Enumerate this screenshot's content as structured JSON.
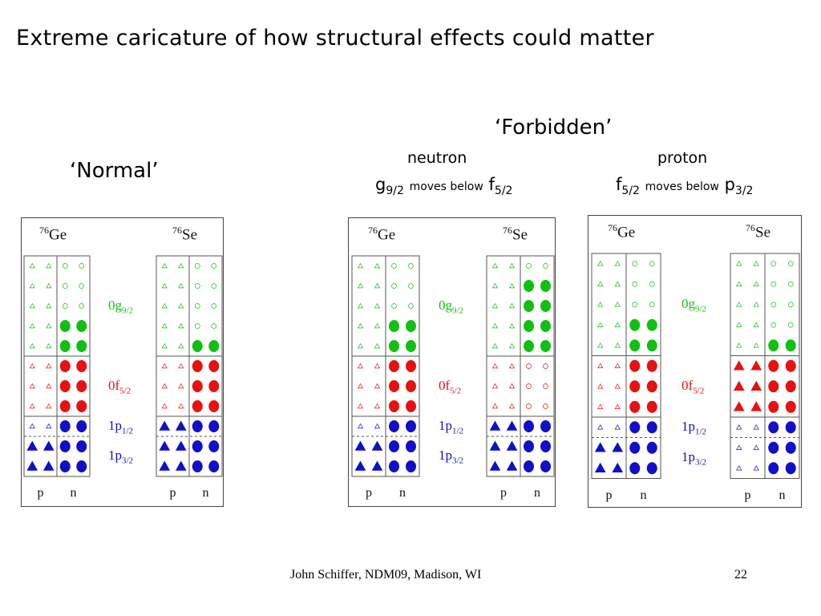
{
  "title": "Extreme caricature of how structural effects could matter",
  "normal_label": "‘Normal’",
  "forbidden_label": "‘Forbidden’",
  "neutron": {
    "header": "neutron",
    "orb_a": "g",
    "orb_a_sub": "9/2",
    "moves": "moves below",
    "orb_b": "f",
    "orb_b_sub": "5/2"
  },
  "proton": {
    "header": "proton",
    "orb_a": "f",
    "orb_a_sub": "5/2",
    "moves": "moves below",
    "orb_b": "p",
    "orb_b_sub": "3/2"
  },
  "nuclei": {
    "ge_mass": "76",
    "ge_sym": "Ge",
    "se_mass": "76",
    "se_sym": "Se"
  },
  "shells": [
    {
      "name": "0g",
      "sub": "9/2",
      "color": "#10c010"
    },
    {
      "name": "0f",
      "sub": "5/2",
      "color": "#e81010"
    },
    {
      "name": "1p",
      "sub": "1/2",
      "color": "#1010c8"
    },
    {
      "name": "1p",
      "sub": "3/2",
      "color": "#1010c8"
    }
  ],
  "pn_labels": {
    "p": "p",
    "n": "n"
  },
  "colors": {
    "g": "#10c010",
    "f": "#e81010",
    "p": "#1010c8"
  },
  "occupancy": {
    "note": "each shell row lists proton-column filled flags and neutron-column filled flags",
    "normal_ge": {
      "p_rows_filled": [
        0,
        0,
        0,
        0,
        0,
        0,
        0,
        0,
        0,
        1,
        1
      ],
      "n_rows_filled": [
        0,
        0,
        0,
        1,
        1,
        1,
        1,
        1,
        1,
        1,
        1
      ]
    },
    "normal_se": {
      "p_rows_filled": [
        0,
        0,
        0,
        0,
        0,
        0,
        0,
        0,
        1,
        1,
        1
      ],
      "n_rows_filled": [
        0,
        0,
        0,
        0,
        1,
        1,
        1,
        1,
        1,
        1,
        1
      ]
    },
    "forb_n_ge": {
      "p_rows_filled": [
        0,
        0,
        0,
        0,
        0,
        0,
        0,
        0,
        0,
        1,
        1
      ],
      "n_rows_filled": [
        0,
        0,
        0,
        1,
        1,
        1,
        1,
        1,
        1,
        1,
        1
      ]
    },
    "forb_n_se": {
      "p_rows_filled": [
        0,
        0,
        0,
        0,
        0,
        0,
        0,
        0,
        1,
        1,
        1
      ],
      "n_rows_filled": [
        0,
        1,
        1,
        1,
        1,
        0,
        0,
        0,
        1,
        1,
        1
      ]
    },
    "forb_p_ge": {
      "p_rows_filled": [
        0,
        0,
        0,
        0,
        0,
        0,
        0,
        0,
        0,
        1,
        1
      ],
      "n_rows_filled": [
        0,
        0,
        0,
        1,
        1,
        1,
        1,
        1,
        1,
        1,
        1
      ]
    },
    "forb_p_se": {
      "p_rows_filled": [
        0,
        0,
        0,
        0,
        0,
        1,
        1,
        1,
        0,
        0,
        0
      ],
      "n_rows_filled": [
        0,
        0,
        0,
        0,
        1,
        1,
        1,
        1,
        1,
        1,
        1
      ]
    }
  },
  "footer": "John Schiffer, NDM09, Madison, WI",
  "page_number": "22"
}
